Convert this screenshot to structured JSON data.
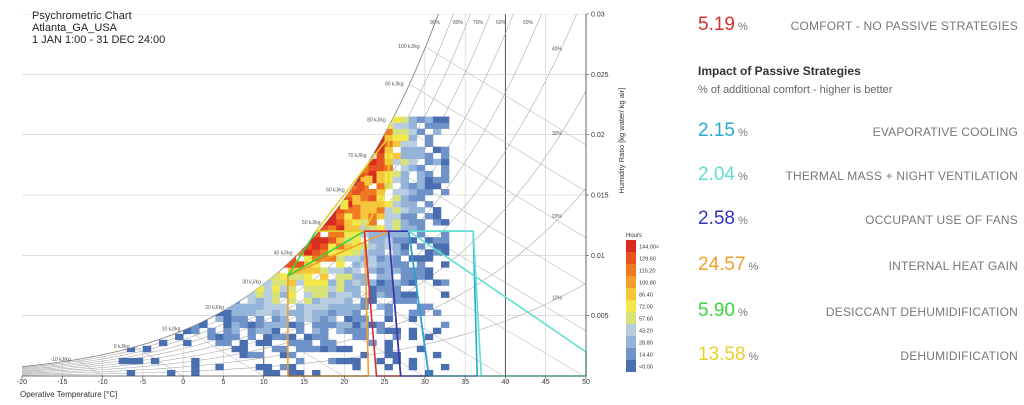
{
  "chart_header": {
    "title": "Psychrometric Chart",
    "location": "Atlanta_GA_USA",
    "period": "1 JAN 1:00 - 31 DEC 24:00"
  },
  "panel": {
    "comfort": {
      "value": "5.19",
      "unit": "%",
      "label": "COMFORT - NO PASSIVE STRATEGIES",
      "color": "#d63030"
    },
    "impact_title": "Impact of Passive Strategies",
    "impact_note": "% of additional comfort - higher is better",
    "strategies": [
      {
        "value": "2.15",
        "unit": "%",
        "label": "EVAPORATIVE COOLING",
        "color": "#27a9d6"
      },
      {
        "value": "2.04",
        "unit": "%",
        "label": "THERMAL MASS + NIGHT VENTILATION",
        "color": "#5fe0cf"
      },
      {
        "value": "2.58",
        "unit": "%",
        "label": "OCCUPANT USE OF FANS",
        "color": "#3236b8"
      },
      {
        "value": "24.57",
        "unit": "%",
        "label": "INTERNAL HEAT GAIN",
        "color": "#f0a02a"
      },
      {
        "value": "5.90",
        "unit": "%",
        "label": "DESICCANT DEHUMIDIFICATION",
        "color": "#3cd43c"
      },
      {
        "value": "13.58",
        "unit": "%",
        "label": "DEHUMIDIFICATION",
        "color": "#e6cf2e"
      }
    ]
  },
  "chart_data": {
    "type": "heatmap",
    "xlabel": "Operative Temperature [°C]",
    "ylabel": "Humidity Ratio [kg water/ kg air]",
    "xlim": [
      -20,
      50
    ],
    "ylim": [
      0,
      0.03
    ],
    "x_ticks": [
      -20,
      -15,
      -10,
      -5,
      0,
      5,
      10,
      15,
      20,
      25,
      30,
      35,
      40,
      45,
      50
    ],
    "x_tick_labels": [
      "-20",
      "-15",
      "-10",
      "-5",
      "0",
      "5",
      "10",
      "15",
      "20",
      "25",
      "30",
      "35",
      "40",
      "45",
      "50"
    ],
    "y_ticks": [
      0.005,
      0.01,
      0.015,
      0.02,
      0.025,
      0.03
    ],
    "y_tick_labels": [
      "0.005",
      "0.01",
      "0.015",
      "0.02",
      "0.025",
      "0.03"
    ],
    "rh_curves": [
      10,
      20,
      30,
      40,
      50,
      60,
      70,
      80,
      90,
      100
    ],
    "rh_labels": [
      "10%",
      "20%",
      "30%",
      "40%",
      "50%",
      "60%",
      "70%",
      "80%",
      "90%"
    ],
    "enthalpy_lines": [
      -10,
      0,
      10,
      20,
      30,
      40,
      50,
      60,
      70,
      80,
      90,
      100
    ],
    "enthalpy_labels": [
      "-10 kJ/kg",
      "0 kJ/kg",
      "10 kJ/kg",
      "20 kJ/kg",
      "30 kJ/kg",
      "40 kJ/kg",
      "50 kJ/kg",
      "60 kJ/kg",
      "70 kJ/kg",
      "80 kJ/kg",
      "90 kJ/kg",
      "100 kJ/kg"
    ],
    "legend": {
      "title": "Hours",
      "labels": [
        "144.00<",
        "129.60",
        "115.20",
        "100.80",
        "86.40",
        "72.00",
        "57.60",
        "43.20",
        "28.80",
        "14.40",
        "<0.00"
      ],
      "colors": [
        "#d62d20",
        "#e8541f",
        "#f07a22",
        "#f59e2a",
        "#f7c53a",
        "#f2e84c",
        "#d8e27a",
        "#b8cde0",
        "#93b3d8",
        "#6f93c8",
        "#4a6fb0"
      ]
    },
    "comfort_zones": [
      {
        "name": "INTERNAL HEAT GAIN",
        "color": "#f0a02a",
        "points": [
          [
            13,
            0
          ],
          [
            13,
            0.0083
          ],
          [
            25.5,
            0.012
          ],
          [
            22.5,
            0.012
          ],
          [
            23,
            0
          ]
        ]
      },
      {
        "name": "DESICCANT DEHUMIDIFICATION",
        "color": "#3cd43c",
        "points": [
          [
            13,
            0.0083
          ],
          [
            22.5,
            0.012
          ],
          [
            16.5,
            0.012
          ]
        ]
      },
      {
        "name": "DEHUMIDIFICATION",
        "color": "#e6cf2e",
        "points": [
          [
            16.5,
            0.012
          ],
          [
            22.5,
            0.012
          ],
          [
            25.5,
            0.016
          ],
          [
            25.5,
            0.0198
          ]
        ]
      },
      {
        "name": "COMFORT",
        "color": "#d63030",
        "points": [
          [
            22.5,
            0.012
          ],
          [
            25.5,
            0.012
          ],
          [
            27,
            0
          ],
          [
            24,
            0
          ]
        ]
      },
      {
        "name": "OCCUPANT USE OF FANS",
        "color": "#3236b8",
        "points": [
          [
            25.5,
            0.012
          ],
          [
            28,
            0.012
          ],
          [
            30.5,
            0
          ],
          [
            27,
            0
          ]
        ]
      },
      {
        "name": "EVAPORATIVE COOLING",
        "color": "#27a9d6",
        "points": [
          [
            28,
            0.012
          ],
          [
            36,
            0.012
          ],
          [
            36.5,
            0
          ],
          [
            30.5,
            0
          ]
        ]
      },
      {
        "name": "THERMAL MASS + NIGHT VENTILATION",
        "color": "#5fe0cf",
        "points": [
          [
            28,
            0.012
          ],
          [
            50,
            0.002
          ],
          [
            50,
            0
          ],
          [
            37,
            0
          ],
          [
            36,
            0.012
          ]
        ]
      }
    ]
  }
}
